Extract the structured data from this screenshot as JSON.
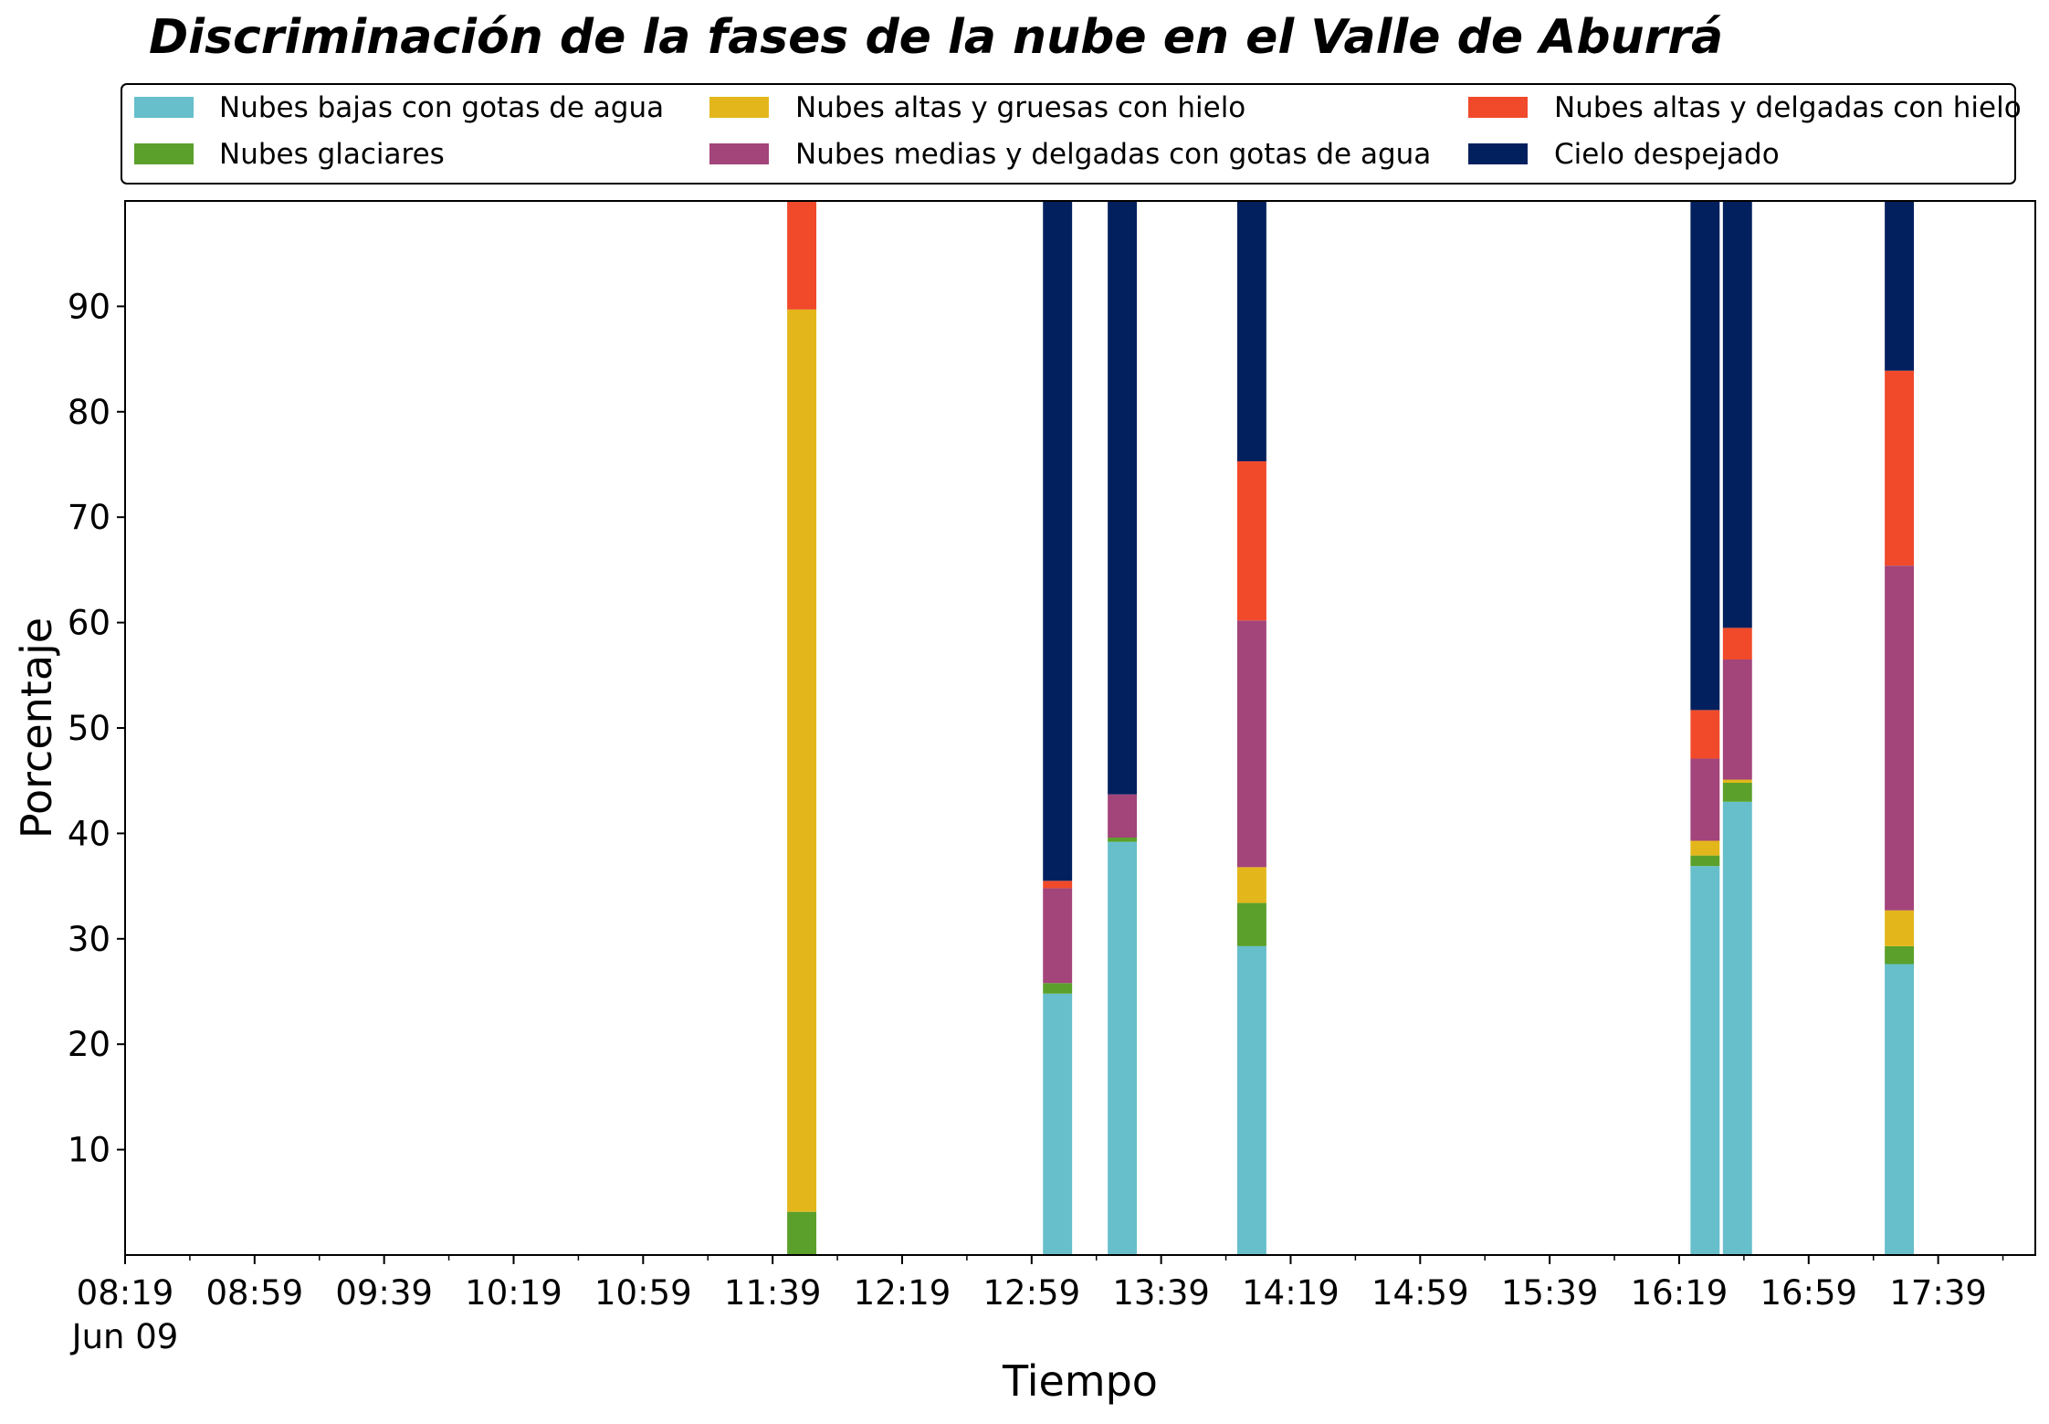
{
  "chart_data": {
    "type": "bar",
    "stacked": true,
    "title": "Discriminación de la fases de la nube en el Valle de Aburrá",
    "xlabel": "Tiempo",
    "ylabel": "Porcentaje",
    "ylim": [
      0,
      100
    ],
    "yticks": [
      10,
      20,
      30,
      40,
      50,
      60,
      70,
      80,
      90
    ],
    "x_range": [
      "08:19",
      "18:09"
    ],
    "xticks": [
      {
        "time": "08:19",
        "label": "08:19",
        "sublabel": "Jun 09"
      },
      {
        "time": "08:59",
        "label": "08:59"
      },
      {
        "time": "09:39",
        "label": "09:39"
      },
      {
        "time": "10:19",
        "label": "10:19"
      },
      {
        "time": "10:59",
        "label": "10:59"
      },
      {
        "time": "11:39",
        "label": "11:39"
      },
      {
        "time": "12:19",
        "label": "12:19"
      },
      {
        "time": "12:59",
        "label": "12:59"
      },
      {
        "time": "13:39",
        "label": "13:39"
      },
      {
        "time": "14:19",
        "label": "14:19"
      },
      {
        "time": "14:59",
        "label": "14:59"
      },
      {
        "time": "15:39",
        "label": "15:39"
      },
      {
        "time": "16:19",
        "label": "16:19"
      },
      {
        "time": "16:59",
        "label": "16:59"
      },
      {
        "time": "17:39",
        "label": "17:39"
      }
    ],
    "bar_width_minutes": 9,
    "grid": false,
    "legend_position": "top",
    "x": [
      "11:48",
      "13:07",
      "13:27",
      "14:07",
      "16:27",
      "16:37",
      "17:27"
    ],
    "series": [
      {
        "name": "Nubes bajas con gotas de agua",
        "color": "#66bfcb",
        "values": [
          0,
          24.8,
          39.2,
          29.3,
          36.9,
          43.0,
          27.6
        ]
      },
      {
        "name": "Nubes glaciares",
        "color": "#5ba02b",
        "values": [
          4.1,
          1.0,
          0.4,
          4.1,
          1.0,
          1.8,
          1.7
        ]
      },
      {
        "name": "Nubes altas y gruesas con hielo",
        "color": "#e3b71b",
        "values": [
          85.6,
          0,
          0,
          3.4,
          1.4,
          0.3,
          3.4
        ]
      },
      {
        "name": "Nubes medias y delgadas con gotas de agua",
        "color": "#a3447a",
        "values": [
          0,
          9.0,
          4.1,
          23.4,
          7.8,
          11.4,
          32.7
        ]
      },
      {
        "name": "Nubes altas y delgadas con hielo",
        "color": "#f04a2b",
        "values": [
          10.3,
          0.7,
          0,
          15.1,
          4.6,
          3.0,
          18.5
        ]
      },
      {
        "name": "Cielo despejado",
        "color": "#03205e",
        "values": [
          0,
          64.5,
          56.3,
          24.7,
          48.3,
          40.5,
          16.1
        ]
      }
    ]
  }
}
